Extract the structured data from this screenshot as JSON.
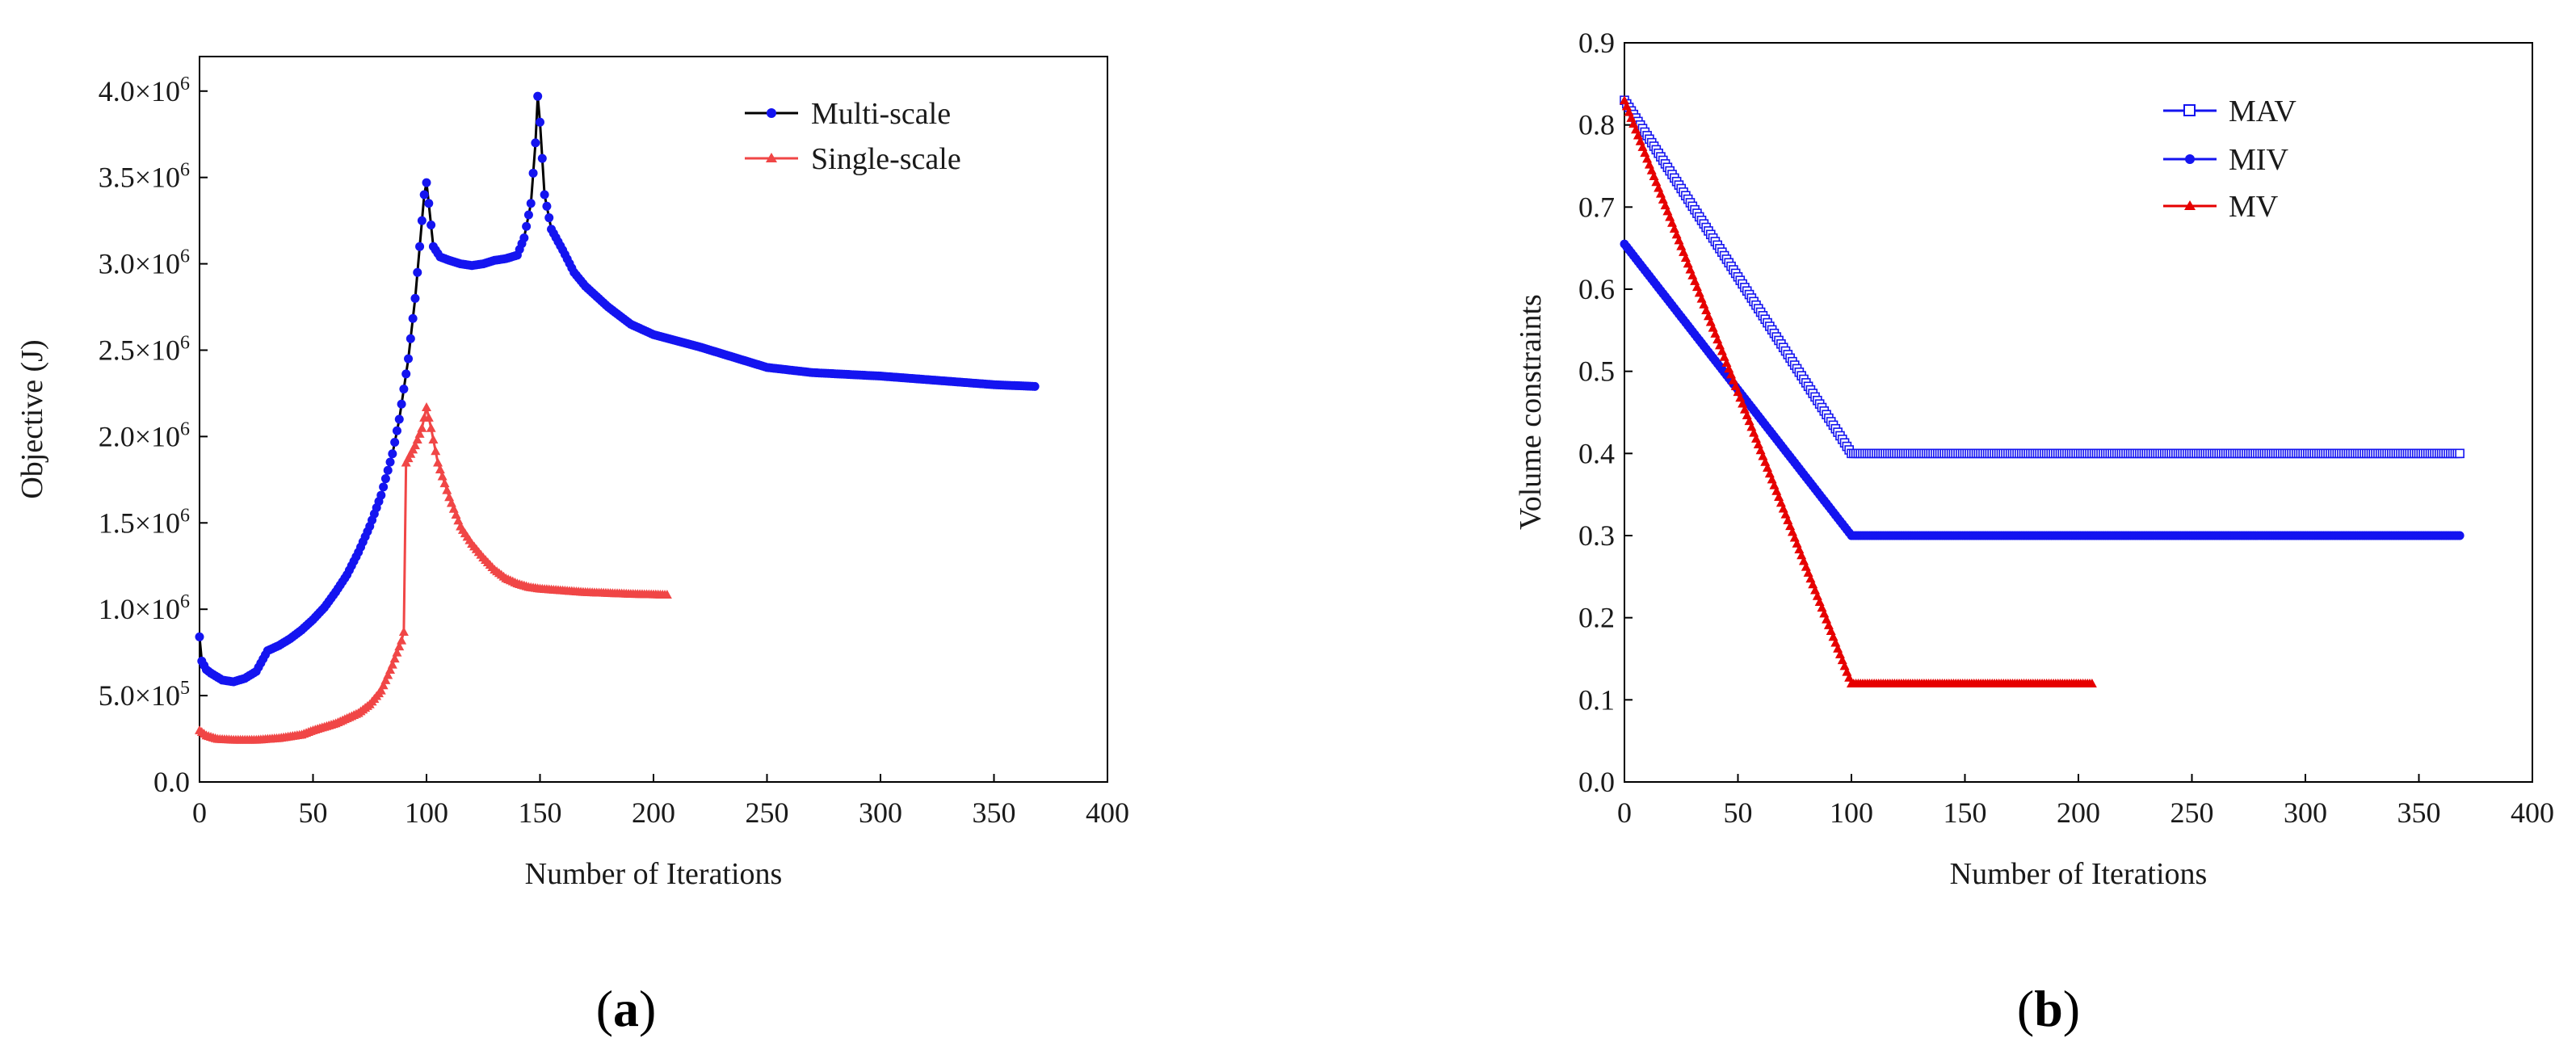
{
  "chart_data": [
    {
      "type": "line",
      "panel_label": "a",
      "title": "",
      "xlabel": "Number of  Iterations",
      "ylabel": "Objective (J)",
      "xlim": [
        0,
        400
      ],
      "ylim": [
        0,
        4200000
      ],
      "x_ticks": [
        0,
        50,
        100,
        150,
        200,
        250,
        300,
        350,
        400
      ],
      "x_tick_labels": [
        "0",
        "50",
        "100",
        "150",
        "200",
        "250",
        "300",
        "350",
        "400"
      ],
      "y_ticks": [
        0,
        500000,
        1000000,
        1500000,
        2000000,
        2500000,
        3000000,
        3500000,
        4000000
      ],
      "y_tick_labels": [
        {
          "mantissa": "0.0",
          "exp": ""
        },
        {
          "mantissa": "5.0×10",
          "exp": "5"
        },
        {
          "mantissa": "1.0×10",
          "exp": "6"
        },
        {
          "mantissa": "1.5×10",
          "exp": "6"
        },
        {
          "mantissa": "2.0×10",
          "exp": "6"
        },
        {
          "mantissa": "2.5×10",
          "exp": "6"
        },
        {
          "mantissa": "3.0×10",
          "exp": "6"
        },
        {
          "mantissa": "3.5×10",
          "exp": "6"
        },
        {
          "mantissa": "4.0×10",
          "exp": "6"
        }
      ],
      "legend_position": "top-right",
      "series": [
        {
          "name": "Multi-scale",
          "color": "#1414f0",
          "line_color": "#000000",
          "marker": "circle",
          "x_end": 368,
          "keypoints": [
            [
              0,
              840000
            ],
            [
              1,
              700000
            ],
            [
              3,
              650000
            ],
            [
              5,
              630000
            ],
            [
              10,
              590000
            ],
            [
              15,
              580000
            ],
            [
              20,
              600000
            ],
            [
              25,
              640000
            ],
            [
              30,
              760000
            ],
            [
              35,
              790000
            ],
            [
              40,
              830000
            ],
            [
              45,
              880000
            ],
            [
              50,
              940000
            ],
            [
              55,
              1010000
            ],
            [
              60,
              1100000
            ],
            [
              65,
              1200000
            ],
            [
              70,
              1330000
            ],
            [
              75,
              1480000
            ],
            [
              80,
              1660000
            ],
            [
              85,
              1900000
            ],
            [
              88,
              2100000
            ],
            [
              92,
              2450000
            ],
            [
              95,
              2800000
            ],
            [
              97,
              3100000
            ],
            [
              99,
              3400000
            ],
            [
              100,
              3470000
            ],
            [
              101,
              3350000
            ],
            [
              103,
              3100000
            ],
            [
              106,
              3040000
            ],
            [
              110,
              3020000
            ],
            [
              115,
              3000000
            ],
            [
              120,
              2990000
            ],
            [
              125,
              3000000
            ],
            [
              130,
              3020000
            ],
            [
              135,
              3030000
            ],
            [
              140,
              3050000
            ],
            [
              143,
              3150000
            ],
            [
              146,
              3350000
            ],
            [
              148,
              3700000
            ],
            [
              149,
              3970000
            ],
            [
              150,
              3820000
            ],
            [
              152,
              3400000
            ],
            [
              155,
              3200000
            ],
            [
              160,
              3080000
            ],
            [
              165,
              2950000
            ],
            [
              170,
              2870000
            ],
            [
              180,
              2750000
            ],
            [
              190,
              2650000
            ],
            [
              200,
              2590000
            ],
            [
              220,
              2520000
            ],
            [
              240,
              2440000
            ],
            [
              250,
              2400000
            ],
            [
              270,
              2370000
            ],
            [
              300,
              2350000
            ],
            [
              330,
              2320000
            ],
            [
              350,
              2300000
            ],
            [
              368,
              2290000
            ]
          ]
        },
        {
          "name": "Single-scale",
          "color": "#f04646",
          "line_color": "#f04646",
          "marker": "triangle",
          "x_end": 206,
          "keypoints": [
            [
              0,
              300000
            ],
            [
              3,
              270000
            ],
            [
              8,
              250000
            ],
            [
              15,
              245000
            ],
            [
              25,
              245000
            ],
            [
              35,
              255000
            ],
            [
              45,
              275000
            ],
            [
              50,
              300000
            ],
            [
              60,
              340000
            ],
            [
              70,
              400000
            ],
            [
              75,
              450000
            ],
            [
              80,
              530000
            ],
            [
              85,
              680000
            ],
            [
              89,
              820000
            ],
            [
              90,
              870000
            ],
            [
              91,
              1850000
            ],
            [
              95,
              1950000
            ],
            [
              98,
              2050000
            ],
            [
              100,
              2170000
            ],
            [
              102,
              2050000
            ],
            [
              105,
              1850000
            ],
            [
              110,
              1650000
            ],
            [
              115,
              1480000
            ],
            [
              120,
              1380000
            ],
            [
              125,
              1300000
            ],
            [
              130,
              1230000
            ],
            [
              135,
              1180000
            ],
            [
              140,
              1150000
            ],
            [
              145,
              1130000
            ],
            [
              150,
              1120000
            ],
            [
              160,
              1110000
            ],
            [
              170,
              1100000
            ],
            [
              180,
              1095000
            ],
            [
              190,
              1090000
            ],
            [
              206,
              1085000
            ]
          ]
        }
      ]
    },
    {
      "type": "line",
      "panel_label": "b",
      "title": "",
      "xlabel": "Number of  Iterations",
      "ylabel": "Volume constraints",
      "xlim": [
        0,
        400
      ],
      "ylim": [
        0,
        0.9
      ],
      "x_ticks": [
        0,
        50,
        100,
        150,
        200,
        250,
        300,
        350,
        400
      ],
      "x_tick_labels": [
        "0",
        "50",
        "100",
        "150",
        "200",
        "250",
        "300",
        "350",
        "400"
      ],
      "y_ticks": [
        0,
        0.1,
        0.2,
        0.3,
        0.4,
        0.5,
        0.6,
        0.7,
        0.8,
        0.9
      ],
      "y_tick_labels": [
        "0.0",
        "0.1",
        "0.2",
        "0.3",
        "0.4",
        "0.5",
        "0.6",
        "0.7",
        "0.8",
        "0.9"
      ],
      "legend_position": "top-right",
      "series": [
        {
          "name": "MAV",
          "color": "#1414f0",
          "marker": "open-square",
          "x_end": 368,
          "keypoints": [
            [
              0,
              0.83
            ],
            [
              100,
              0.4
            ],
            [
              368,
              0.4
            ]
          ]
        },
        {
          "name": "MIV",
          "color": "#1414f0",
          "marker": "circle",
          "x_end": 368,
          "keypoints": [
            [
              0,
              0.655
            ],
            [
              100,
              0.3
            ],
            [
              368,
              0.3
            ]
          ]
        },
        {
          "name": "MV",
          "color": "#e60000",
          "marker": "triangle",
          "x_end": 206,
          "keypoints": [
            [
              0,
              0.83
            ],
            [
              100,
              0.12
            ],
            [
              206,
              0.12
            ]
          ]
        }
      ]
    }
  ]
}
